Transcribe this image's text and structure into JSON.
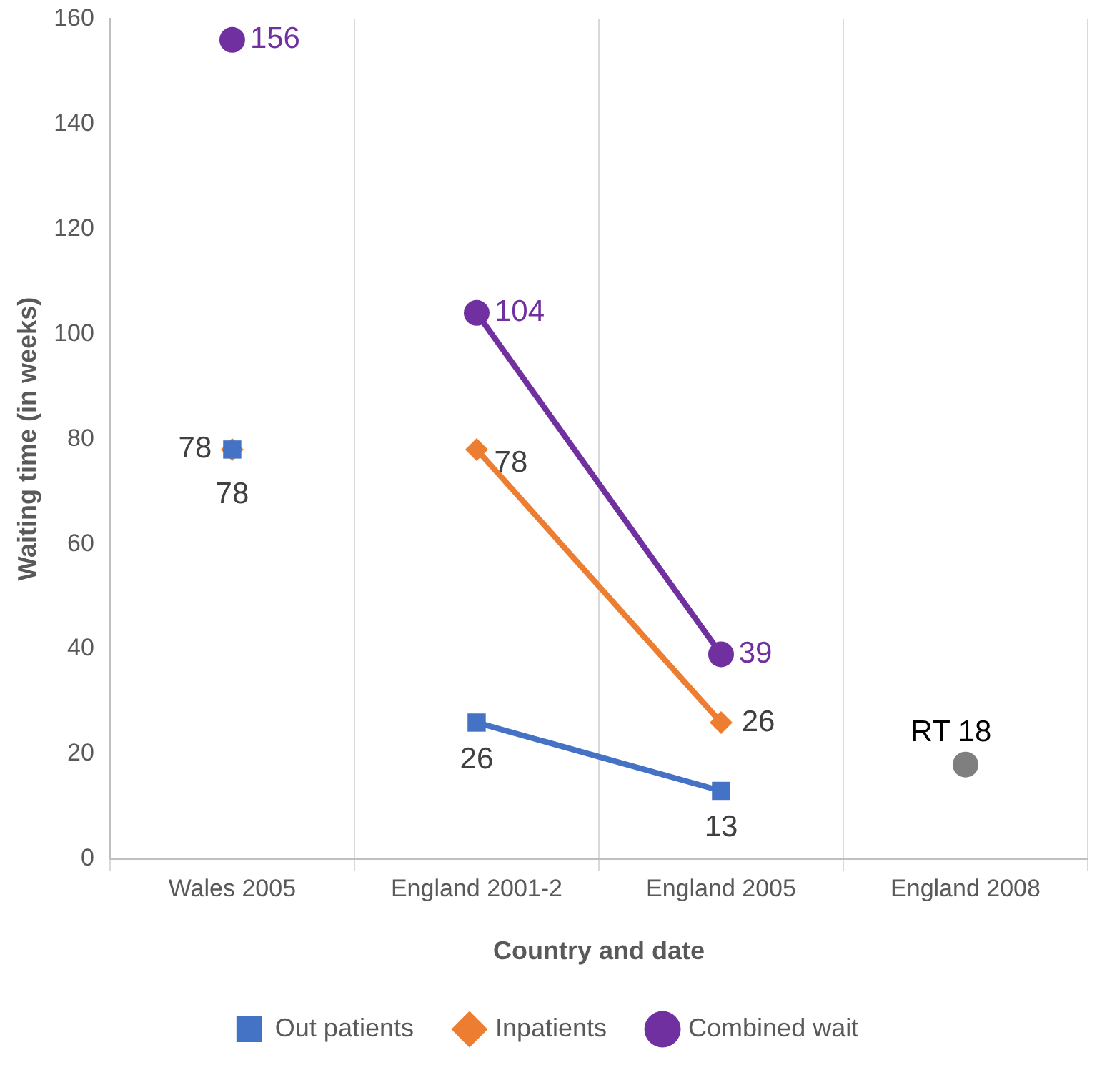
{
  "chart_data": {
    "type": "line",
    "xlabel": "Country and date",
    "ylabel": "Waiting time (in weeks)",
    "categories": [
      "Wales 2005",
      "England 2001-2",
      "England 2005",
      "England 2008"
    ],
    "ylim": [
      0,
      160
    ],
    "yticks": [
      0,
      20,
      40,
      60,
      80,
      100,
      120,
      140,
      160
    ],
    "grid": "x",
    "legend": "bottom",
    "series": [
      {
        "name": "Out patients",
        "color": "#4472c4",
        "marker": "square",
        "values": [
          null,
          26,
          13,
          null
        ],
        "value_labels": [
          null,
          "26",
          "13",
          null
        ]
      },
      {
        "name": "Inpatients",
        "color": "#ed7d31",
        "marker": "diamond",
        "values": [
          null,
          78,
          26,
          null
        ],
        "value_labels": [
          null,
          "78",
          "26",
          null
        ]
      },
      {
        "name": "Combined wait",
        "color": "#7030a0",
        "marker": "circle",
        "values": [
          null,
          104,
          39,
          null
        ],
        "value_labels": [
          null,
          "104",
          "39",
          null
        ]
      },
      {
        "type": "scatter",
        "color": "#4472c4",
        "marker": "square",
        "values": [
          78,
          null,
          null,
          null
        ],
        "value_labels": [
          "78",
          null,
          null,
          null
        ]
      },
      {
        "type": "scatter",
        "color": "#ed7d31",
        "marker": "diamond",
        "values": [
          78,
          null,
          null,
          null
        ],
        "value_labels": [
          "78",
          null,
          null,
          null
        ]
      },
      {
        "type": "scatter",
        "color": "#7030a0",
        "marker": "circle",
        "values": [
          156,
          null,
          null,
          null
        ],
        "value_labels": [
          "156",
          null,
          null,
          null
        ]
      },
      {
        "type": "scatter",
        "color": "#7f7f7f",
        "marker": "circle",
        "values": [
          null,
          null,
          null,
          18
        ],
        "value_labels": [
          null,
          null,
          null,
          "RT 18"
        ]
      }
    ]
  }
}
